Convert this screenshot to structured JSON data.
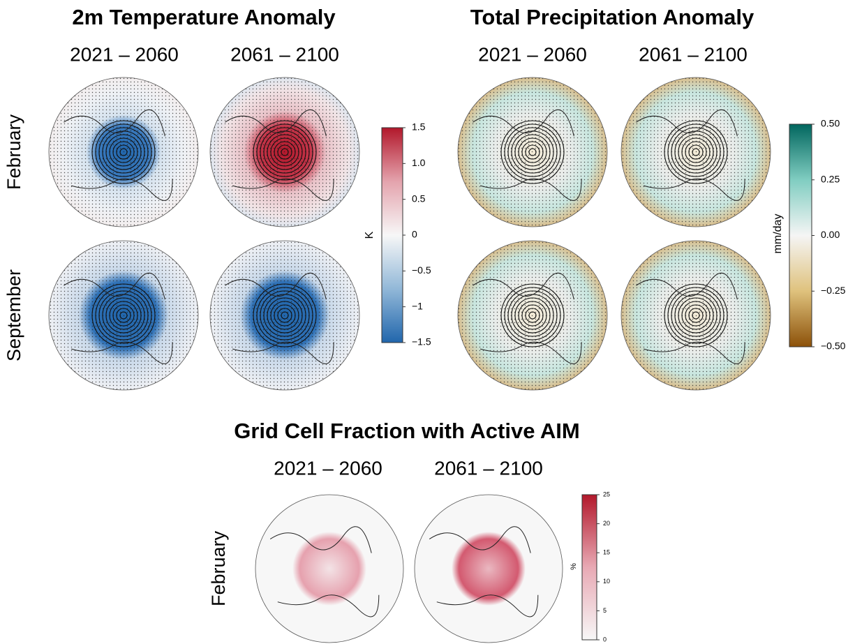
{
  "panels": [
    {
      "title": "2m Temperature Anomaly",
      "columns": [
        "2021 – 2060",
        "2061 – 2100"
      ],
      "rows": [
        "February",
        "September"
      ],
      "colorbar": {
        "label": "K",
        "lim": [
          -1.5,
          1.5
        ],
        "colors": [
          "#2166ac",
          "#92b8d8",
          "#f7f7f7",
          "#e4a3ad",
          "#b2182b"
        ],
        "ticks": [
          1.5,
          {
            "value": 1,
            "label": "1.0"
          },
          0.5,
          0,
          {
            "value": -0.5,
            "label": "−0.5"
          },
          {
            "value": -1,
            "label": "−1"
          },
          {
            "value": -1.5,
            "label": "−1.5"
          }
        ]
      }
    },
    {
      "title": "Total Precipitation Anomaly",
      "columns": [
        "2021 – 2060",
        "2061 – 2100"
      ],
      "rows": [],
      "colorbar": {
        "label": "mm/day",
        "lim": [
          -0.5,
          0.5
        ],
        "colors": [
          "#8c5109",
          "#dfc27d",
          "#f5f5f5",
          "#80cdc1",
          "#01665e"
        ],
        "ticks": [
          {
            "value": 0.5,
            "label": "0.50"
          },
          0.25,
          {
            "value": 0,
            "label": "0.00"
          },
          {
            "value": -0.25,
            "label": "−0.25"
          },
          {
            "value": -0.5,
            "label": "−0.50"
          }
        ]
      }
    },
    {
      "title": "Grid Cell Fraction with Active AIM",
      "columns": [
        "2021 – 2060",
        "2061 – 2100"
      ],
      "rows": [
        "February"
      ],
      "colorbar": {
        "label": "%",
        "lim": [
          0,
          25
        ],
        "colors": [
          "#f7f7f7",
          "#e8a9b4",
          "#b2182b"
        ],
        "ticks": [
          25,
          20,
          15,
          10,
          5,
          0
        ]
      }
    }
  ]
}
